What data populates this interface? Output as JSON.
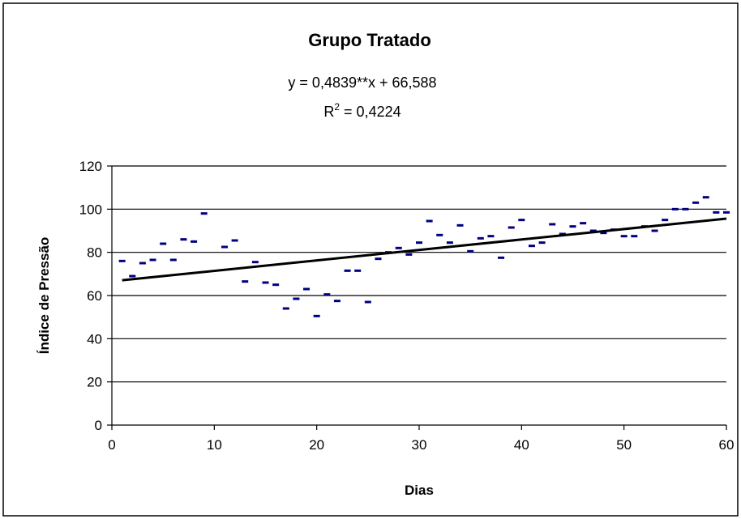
{
  "chart_data": {
    "type": "scatter",
    "title": "Grupo Tratado",
    "equation": "y = 0,4839**x + 66,588",
    "r2_prefix": "R",
    "r2_exp": "2",
    "r2_value": " = 0,4224",
    "xlabel": "Dias",
    "ylabel": "Índice de Pressão",
    "xlim": [
      0,
      60
    ],
    "ylim": [
      0,
      120
    ],
    "xticks": [
      0,
      10,
      20,
      30,
      40,
      50,
      60
    ],
    "yticks": [
      0,
      20,
      40,
      60,
      80,
      100,
      120
    ],
    "grid": "horizontal",
    "legend": "none",
    "marker_color": "#000080",
    "trendline": {
      "slope": 0.4839,
      "intercept": 66.588,
      "x_range": [
        1,
        60
      ]
    },
    "points": [
      [
        1,
        76
      ],
      [
        2,
        69
      ],
      [
        3,
        75
      ],
      [
        4,
        76.5
      ],
      [
        5,
        84
      ],
      [
        6,
        76.5
      ],
      [
        7,
        86
      ],
      [
        8,
        85
      ],
      [
        9,
        98
      ],
      [
        11,
        82.5
      ],
      [
        12,
        85.5
      ],
      [
        13,
        66.5
      ],
      [
        14,
        75.5
      ],
      [
        15,
        66
      ],
      [
        16,
        65
      ],
      [
        17,
        54
      ],
      [
        18,
        58.5
      ],
      [
        19,
        63
      ],
      [
        20,
        50.5
      ],
      [
        21,
        60.5
      ],
      [
        22,
        57.5
      ],
      [
        23,
        71.5
      ],
      [
        24,
        71.5
      ],
      [
        25,
        57
      ],
      [
        26,
        77
      ],
      [
        27,
        80
      ],
      [
        28,
        82
      ],
      [
        29,
        79
      ],
      [
        30,
        84.5
      ],
      [
        31,
        94.5
      ],
      [
        32,
        88
      ],
      [
        33,
        84.5
      ],
      [
        34,
        92.5
      ],
      [
        35,
        80.5
      ],
      [
        36,
        86.5
      ],
      [
        37,
        87.5
      ],
      [
        38,
        77.5
      ],
      [
        39,
        91.5
      ],
      [
        40,
        95
      ],
      [
        41,
        83
      ],
      [
        42,
        84.5
      ],
      [
        43,
        93
      ],
      [
        44,
        88.5
      ],
      [
        45,
        92
      ],
      [
        46,
        93.5
      ],
      [
        47,
        90
      ],
      [
        48,
        89
      ],
      [
        49,
        90.5
      ],
      [
        50,
        87.5
      ],
      [
        51,
        87.5
      ],
      [
        52,
        92
      ],
      [
        53,
        90
      ],
      [
        54,
        95
      ],
      [
        55,
        100
      ],
      [
        56,
        100
      ],
      [
        57,
        103
      ],
      [
        58,
        105.5
      ],
      [
        59,
        98.5
      ],
      [
        60,
        98.5
      ]
    ]
  }
}
